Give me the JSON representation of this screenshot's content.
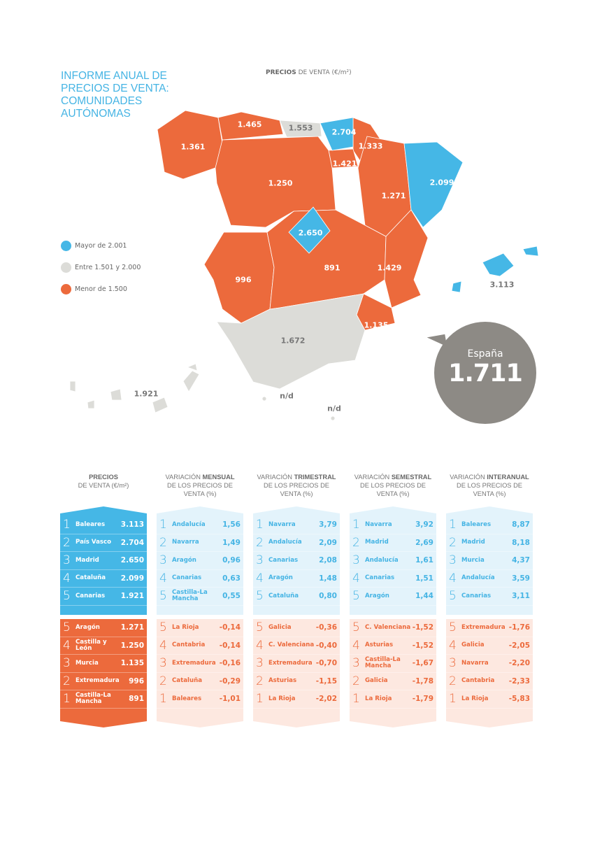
{
  "title": "INFORME ANUAL DE PRECIOS DE VENTA: COMUNIDADES AUTÓNOMAS",
  "map_title": {
    "bold": "PRECIOS",
    "rest": " DE VENTA (€/m²)"
  },
  "colors": {
    "blue": "#45b7e6",
    "grey": "#dcdcd8",
    "orange": "#ec6a3c",
    "national": "#8d8a85"
  },
  "legend": [
    {
      "label": "Mayor de 2.001",
      "color": "#45b7e6"
    },
    {
      "label": "Entre 1.501 y 2.000",
      "color": "#dcdcd8"
    },
    {
      "label": "Menor de 1.500",
      "color": "#ec6a3c"
    }
  ],
  "regions": {
    "galicia": "1.361",
    "asturias": "1.465",
    "cantabria": "1.553",
    "pais_vasco": "2.704",
    "navarra": "1.333",
    "la_rioja": "1.421",
    "castilla_leon": "1.250",
    "aragon": "1.271",
    "cataluna": "2.099",
    "madrid": "2.650",
    "extremadura": "996",
    "castilla_la_mancha": "891",
    "c_valenciana": "1.429",
    "murcia": "1.135",
    "andalucia": "1.672",
    "baleares": "3.113",
    "canarias": "1.921",
    "ceuta": "n/d",
    "melilla": "n/d"
  },
  "national": {
    "label": "España",
    "value": "1.711"
  },
  "tables": [
    {
      "head_pre": "",
      "head_bold": "PRECIOS",
      "head_post": "DE VENTA (€/m²)",
      "top": [
        [
          "1",
          "Baleares",
          "3.113"
        ],
        [
          "2",
          "País Vasco",
          "2.704"
        ],
        [
          "3",
          "Madrid",
          "2.650"
        ],
        [
          "4",
          "Cataluña",
          "2.099"
        ],
        [
          "5",
          "Canarias",
          "1.921"
        ]
      ],
      "bottom": [
        [
          "5",
          "Aragón",
          "1.271"
        ],
        [
          "4",
          "Castilla y León",
          "1.250"
        ],
        [
          "3",
          "Murcia",
          "1.135"
        ],
        [
          "2",
          "Extremadura",
          "996"
        ],
        [
          "1",
          "Castilla-La Mancha",
          "891"
        ]
      ]
    },
    {
      "head_pre": "VARIACIÓN ",
      "head_bold": "MENSUAL",
      "head_post": "DE LOS PRECIOS DE VENTA (%)",
      "top": [
        [
          "1",
          "Andalucía",
          "1,56"
        ],
        [
          "2",
          "Navarra",
          "1,49"
        ],
        [
          "3",
          "Aragón",
          "0,96"
        ],
        [
          "4",
          "Canarias",
          "0,63"
        ],
        [
          "5",
          "Castilla-La Mancha",
          "0,55"
        ]
      ],
      "bottom": [
        [
          "5",
          "La Rioja",
          "-0,14"
        ],
        [
          "4",
          "Cantabria",
          "-0,14"
        ],
        [
          "3",
          "Extremadura",
          "-0,16"
        ],
        [
          "2",
          "Cataluña",
          "-0,29"
        ],
        [
          "1",
          "Baleares",
          "-1,01"
        ]
      ]
    },
    {
      "head_pre": "VARIACIÓN ",
      "head_bold": "TRIMESTRAL",
      "head_post": "DE LOS PRECIOS DE VENTA (%)",
      "top": [
        [
          "1",
          "Navarra",
          "3,79"
        ],
        [
          "2",
          "Andalucía",
          "2,09"
        ],
        [
          "3",
          "Canarias",
          "2,08"
        ],
        [
          "4",
          "Aragón",
          "1,48"
        ],
        [
          "5",
          "Cataluña",
          "0,80"
        ]
      ],
      "bottom": [
        [
          "5",
          "Galicia",
          "-0,36"
        ],
        [
          "4",
          "C. Valenciana",
          "-0,40"
        ],
        [
          "3",
          "Extremadura",
          "-0,70"
        ],
        [
          "2",
          "Asturias",
          "-1,15"
        ],
        [
          "1",
          "La Rioja",
          "-2,02"
        ]
      ]
    },
    {
      "head_pre": "VARIACIÓN ",
      "head_bold": "SEMESTRAL",
      "head_post": "DE LOS PRECIOS DE VENTA (%)",
      "top": [
        [
          "1",
          "Navarra",
          "3,92"
        ],
        [
          "2",
          "Madrid",
          "2,69"
        ],
        [
          "3",
          "Andalucía",
          "1,61"
        ],
        [
          "4",
          "Canarias",
          "1,51"
        ],
        [
          "5",
          "Aragón",
          "1,44"
        ]
      ],
      "bottom": [
        [
          "5",
          "C. Valenciana",
          "-1,52"
        ],
        [
          "4",
          "Asturias",
          "-1,52"
        ],
        [
          "3",
          "Castilla-La Mancha",
          "-1,67"
        ],
        [
          "2",
          "Galicia",
          "-1,78"
        ],
        [
          "1",
          "La Rioja",
          "-1,79"
        ]
      ]
    },
    {
      "head_pre": "VARIACIÓN ",
      "head_bold": "INTERANUAL",
      "head_post": "DE LOS PRECIOS DE VENTA (%)",
      "top": [
        [
          "1",
          "Baleares",
          "8,87"
        ],
        [
          "2",
          "Madrid",
          "8,18"
        ],
        [
          "3",
          "Murcia",
          "4,37"
        ],
        [
          "4",
          "Andalucía",
          "3,59"
        ],
        [
          "5",
          "Canarias",
          "3,11"
        ]
      ],
      "bottom": [
        [
          "5",
          "Extremadura",
          "-1,76"
        ],
        [
          "4",
          "Galicia",
          "-2,05"
        ],
        [
          "3",
          "Navarra",
          "-2,20"
        ],
        [
          "2",
          "Cantabria",
          "-2,33"
        ],
        [
          "1",
          "La Rioja",
          "-5,83"
        ]
      ]
    }
  ]
}
